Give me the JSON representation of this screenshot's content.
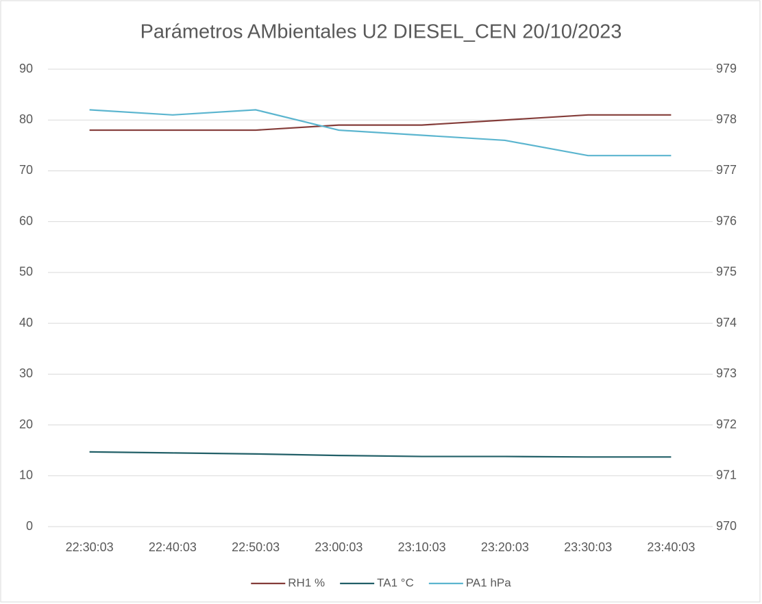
{
  "chart_data": {
    "type": "line",
    "title": "Parámetros AMbientales U2 DIESEL_CEN 20/10/2023",
    "categories": [
      "22:30:03",
      "22:40:03",
      "22:50:03",
      "23:00:03",
      "23:10:03",
      "23:20:03",
      "23:30:03",
      "23:40:03"
    ],
    "series": [
      {
        "name": "RH1 %",
        "color": "#843c39",
        "values": [
          78,
          78,
          78,
          79,
          79,
          80,
          81,
          81
        ]
      },
      {
        "name": "TA1 °C",
        "color": "#215f67",
        "values": [
          14.7,
          14.5,
          14.3,
          14.0,
          13.8,
          13.8,
          13.7,
          13.7
        ]
      },
      {
        "name": "PA1 hPa",
        "color": "#5bb5cf",
        "axis": "y2",
        "values": [
          978.2,
          978.1,
          978.2,
          977.8,
          977.7,
          977.6,
          977.3,
          977.3
        ]
      }
    ],
    "ylim": [
      0,
      90
    ],
    "yticks": [
      0,
      10,
      20,
      30,
      40,
      50,
      60,
      70,
      80,
      90
    ],
    "y2lim": [
      970,
      979
    ],
    "y2ticks": [
      970,
      971,
      972,
      973,
      974,
      975,
      976,
      977,
      978,
      979
    ],
    "grid": true,
    "legend": "bottom"
  }
}
